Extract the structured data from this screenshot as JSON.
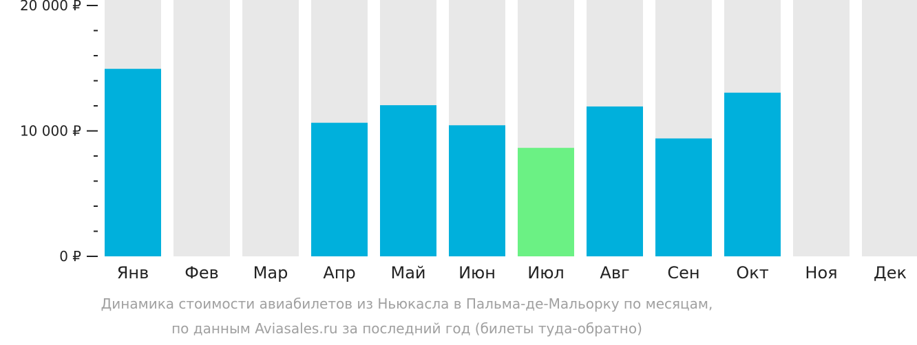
{
  "chart_data": {
    "type": "bar",
    "categories": [
      "Янв",
      "Фев",
      "Мар",
      "Апр",
      "Май",
      "Июн",
      "Июл",
      "Авг",
      "Сен",
      "Окт",
      "Ноя",
      "Дек"
    ],
    "values": [
      14950,
      null,
      null,
      10650,
      12050,
      10450,
      8650,
      11950,
      9400,
      13050,
      null,
      null
    ],
    "ylim": [
      0,
      20000
    ],
    "yticks": [
      {
        "value": 0,
        "label": "0 ₽"
      },
      {
        "value": 10000,
        "label": "10 000 ₽"
      },
      {
        "value": 20000,
        "label": "20 000 ₽"
      }
    ],
    "minor_ytick_step": 2000,
    "highlight_category": "Июл",
    "grid": false,
    "caption_line1": "Динамика стоимости авиабилетов из Ньюкасла в Пальма-де-Мальорку по месяцам,",
    "caption_line2": "по данным Aviasales.ru за последний год (билеты туда-обратно)"
  },
  "colors": {
    "bar": "#00b0dc",
    "highlight": "#6bf184",
    "background_bar": "#e8e8e8",
    "axis": "#222222"
  }
}
